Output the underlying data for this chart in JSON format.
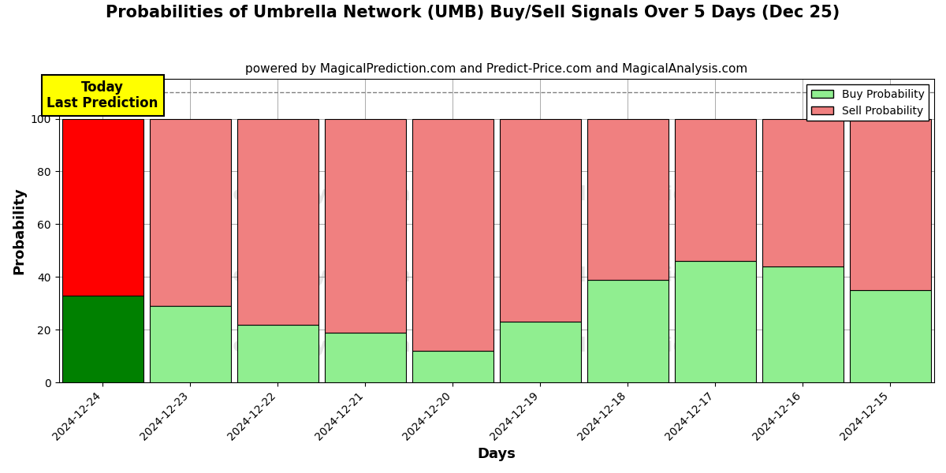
{
  "title": "Probabilities of Umbrella Network (UMB) Buy/Sell Signals Over 5 Days (Dec 25)",
  "subtitle": "powered by MagicalPrediction.com and Predict-Price.com and MagicalAnalysis.com",
  "xlabel": "Days",
  "ylabel": "Probability",
  "categories": [
    "2024-12-24",
    "2024-12-23",
    "2024-12-22",
    "2024-12-21",
    "2024-12-20",
    "2024-12-19",
    "2024-12-18",
    "2024-12-17",
    "2024-12-16",
    "2024-12-15"
  ],
  "buy_values": [
    33,
    29,
    22,
    19,
    12,
    23,
    39,
    46,
    44,
    35
  ],
  "sell_values": [
    67,
    71,
    78,
    81,
    88,
    77,
    61,
    54,
    56,
    65
  ],
  "today_index": 0,
  "today_buy_color": "#008000",
  "today_sell_color": "#FF0000",
  "normal_buy_color": "#90EE90",
  "normal_sell_color": "#F08080",
  "bar_edge_color": "#000000",
  "today_label_bg": "#FFFF00",
  "today_label_text": "Today\nLast Prediction",
  "legend_buy_label": "Buy Probability",
  "legend_sell_label": "Sell Probability",
  "ylim": [
    0,
    115
  ],
  "yticks": [
    0,
    20,
    40,
    60,
    80,
    100
  ],
  "dashed_line_y": 110,
  "background_color": "#FFFFFF",
  "grid_color": "#AAAAAA",
  "title_fontsize": 15,
  "subtitle_fontsize": 11,
  "axis_label_fontsize": 13,
  "tick_fontsize": 10,
  "bar_width": 0.93
}
